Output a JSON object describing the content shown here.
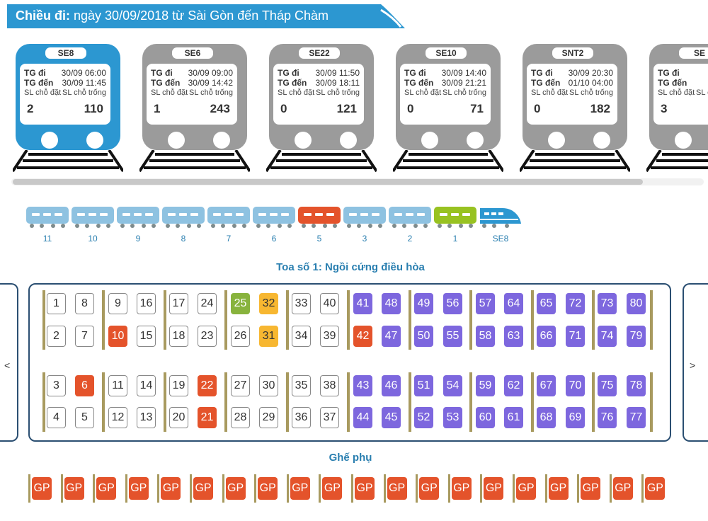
{
  "header": {
    "title_label": "Chiều đi:",
    "title_text": "ngày 30/09/2018 từ Sài Gòn đến Tháp Chàm",
    "color": "#2c97d1"
  },
  "labels": {
    "depart": "TG đi",
    "arrive": "TG đến",
    "booked": "SL chỗ đặt",
    "available": "SL chỗ trống"
  },
  "trains": [
    {
      "name": "SE8",
      "depart": "30/09 06:00",
      "arrive": "30/09 11:45",
      "booked": "2",
      "available": "110",
      "active": true
    },
    {
      "name": "SE6",
      "depart": "30/09 09:00",
      "arrive": "30/09 14:42",
      "booked": "1",
      "available": "243",
      "active": false
    },
    {
      "name": "SE22",
      "depart": "30/09 11:50",
      "arrive": "30/09 18:11",
      "booked": "0",
      "available": "121",
      "active": false
    },
    {
      "name": "SE10",
      "depart": "30/09 14:40",
      "arrive": "30/09 21:21",
      "booked": "0",
      "available": "71",
      "active": false
    },
    {
      "name": "SNT2",
      "depart": "30/09 20:30",
      "arrive": "01/10 04:00",
      "booked": "0",
      "available": "182",
      "active": false
    },
    {
      "name": "SE",
      "depart": "",
      "arrive": "",
      "booked": "3",
      "available": "",
      "active": false
    }
  ],
  "coaches": [
    {
      "number": "11",
      "status": "blue"
    },
    {
      "number": "10",
      "status": "blue"
    },
    {
      "number": "9",
      "status": "blue"
    },
    {
      "number": "8",
      "status": "blue"
    },
    {
      "number": "7",
      "status": "blue"
    },
    {
      "number": "6",
      "status": "blue"
    },
    {
      "number": "5",
      "status": "red"
    },
    {
      "number": "3",
      "status": "blue"
    },
    {
      "number": "2",
      "status": "blue"
    },
    {
      "number": "1",
      "status": "green"
    }
  ],
  "locomotive": {
    "label": "SE8",
    "color": "#2c97d1"
  },
  "coach_title": "Toa số 1: Ngồi cứng điều hòa",
  "nav": {
    "prev": "<",
    "next": ">"
  },
  "seat_rows": [
    [
      {
        "n": "1",
        "s": "empty"
      },
      {
        "n": "8",
        "s": "empty"
      },
      {
        "n": "9",
        "s": "empty"
      },
      {
        "n": "16",
        "s": "empty"
      },
      {
        "n": "17",
        "s": "empty"
      },
      {
        "n": "24",
        "s": "empty"
      },
      {
        "n": "25",
        "s": "green"
      },
      {
        "n": "32",
        "s": "yellow"
      },
      {
        "n": "33",
        "s": "empty"
      },
      {
        "n": "40",
        "s": "empty"
      },
      {
        "n": "41",
        "s": "purple"
      },
      {
        "n": "48",
        "s": "purple"
      },
      {
        "n": "49",
        "s": "purple"
      },
      {
        "n": "56",
        "s": "purple"
      },
      {
        "n": "57",
        "s": "purple"
      },
      {
        "n": "64",
        "s": "purple"
      },
      {
        "n": "65",
        "s": "purple"
      },
      {
        "n": "72",
        "s": "purple"
      },
      {
        "n": "73",
        "s": "purple"
      },
      {
        "n": "80",
        "s": "purple"
      }
    ],
    [
      {
        "n": "2",
        "s": "empty"
      },
      {
        "n": "7",
        "s": "empty"
      },
      {
        "n": "10",
        "s": "booked"
      },
      {
        "n": "15",
        "s": "empty"
      },
      {
        "n": "18",
        "s": "empty"
      },
      {
        "n": "23",
        "s": "empty"
      },
      {
        "n": "26",
        "s": "empty"
      },
      {
        "n": "31",
        "s": "yellow"
      },
      {
        "n": "34",
        "s": "empty"
      },
      {
        "n": "39",
        "s": "empty"
      },
      {
        "n": "42",
        "s": "booked"
      },
      {
        "n": "47",
        "s": "purple"
      },
      {
        "n": "50",
        "s": "purple"
      },
      {
        "n": "55",
        "s": "purple"
      },
      {
        "n": "58",
        "s": "purple"
      },
      {
        "n": "63",
        "s": "purple"
      },
      {
        "n": "66",
        "s": "purple"
      },
      {
        "n": "71",
        "s": "purple"
      },
      {
        "n": "74",
        "s": "purple"
      },
      {
        "n": "79",
        "s": "purple"
      }
    ],
    [
      {
        "n": "3",
        "s": "empty"
      },
      {
        "n": "6",
        "s": "booked"
      },
      {
        "n": "11",
        "s": "empty"
      },
      {
        "n": "14",
        "s": "empty"
      },
      {
        "n": "19",
        "s": "empty"
      },
      {
        "n": "22",
        "s": "booked"
      },
      {
        "n": "27",
        "s": "empty"
      },
      {
        "n": "30",
        "s": "empty"
      },
      {
        "n": "35",
        "s": "empty"
      },
      {
        "n": "38",
        "s": "empty"
      },
      {
        "n": "43",
        "s": "purple"
      },
      {
        "n": "46",
        "s": "purple"
      },
      {
        "n": "51",
        "s": "purple"
      },
      {
        "n": "54",
        "s": "purple"
      },
      {
        "n": "59",
        "s": "purple"
      },
      {
        "n": "62",
        "s": "purple"
      },
      {
        "n": "67",
        "s": "purple"
      },
      {
        "n": "70",
        "s": "purple"
      },
      {
        "n": "75",
        "s": "purple"
      },
      {
        "n": "78",
        "s": "purple"
      }
    ],
    [
      {
        "n": "4",
        "s": "empty"
      },
      {
        "n": "5",
        "s": "empty"
      },
      {
        "n": "12",
        "s": "empty"
      },
      {
        "n": "13",
        "s": "empty"
      },
      {
        "n": "20",
        "s": "empty"
      },
      {
        "n": "21",
        "s": "booked"
      },
      {
        "n": "28",
        "s": "empty"
      },
      {
        "n": "29",
        "s": "empty"
      },
      {
        "n": "36",
        "s": "empty"
      },
      {
        "n": "37",
        "s": "empty"
      },
      {
        "n": "44",
        "s": "purple"
      },
      {
        "n": "45",
        "s": "purple"
      },
      {
        "n": "52",
        "s": "purple"
      },
      {
        "n": "53",
        "s": "purple"
      },
      {
        "n": "60",
        "s": "purple"
      },
      {
        "n": "61",
        "s": "purple"
      },
      {
        "n": "68",
        "s": "purple"
      },
      {
        "n": "69",
        "s": "purple"
      },
      {
        "n": "76",
        "s": "purple"
      },
      {
        "n": "77",
        "s": "purple"
      }
    ]
  ],
  "extra_title": "Ghế phụ",
  "extra_seats": [
    "GP",
    "GP",
    "GP",
    "GP",
    "GP",
    "GP",
    "GP",
    "GP",
    "GP",
    "GP",
    "GP",
    "GP",
    "GP",
    "GP",
    "GP",
    "GP",
    "GP",
    "GP",
    "GP",
    "GP"
  ],
  "colors": {
    "booked": "#e4532b",
    "premium": "#7d67de",
    "selected": "#f7b731",
    "choosing": "#88b33d",
    "coach_available": "#8ec2e1",
    "border": "#2b4f72"
  }
}
